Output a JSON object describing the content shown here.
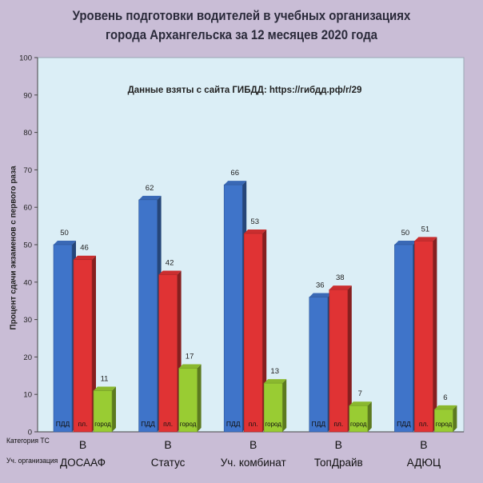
{
  "title_lines": [
    "Уровень  подготовки водителей в учебных организациях",
    "города Архангельска за 12 месяцев 2020 года"
  ],
  "colors": {
    "page_bg": "#c9bdd6",
    "plot_bg": "#dbeef6",
    "pdd": "#3f74c9",
    "pl": "#e03334",
    "gorod": "#99cc33"
  },
  "row_labels": {
    "category": "Категория ТС",
    "org": "Уч. организация"
  },
  "chart_data": {
    "type": "bar",
    "title": "",
    "annotation": "Данные взяты с сайта ГИБДД: https://гибдд.рф/r/29",
    "ylabel": "Процент сдачи экзаменов с первого раза",
    "xlabel": "",
    "ylim": [
      0,
      100
    ],
    "yticks": [
      0,
      10,
      20,
      30,
      40,
      50,
      60,
      70,
      80,
      90,
      100
    ],
    "grid": false,
    "legend": "none",
    "categories": [
      "ДОСААФ",
      "Статус",
      "Уч. комбинат",
      "ТопДрайв",
      "АДЮЦ"
    ],
    "vehicle_category": [
      "В",
      "В",
      "В",
      "В",
      "В"
    ],
    "series": [
      {
        "bar_label": "ПДД",
        "values": [
          50,
          62,
          66,
          36,
          50
        ],
        "color": "#3f74c9"
      },
      {
        "bar_label": "пл.",
        "values": [
          46,
          42,
          53,
          38,
          51
        ],
        "color": "#e03334"
      },
      {
        "bar_label": "город",
        "values": [
          11,
          17,
          13,
          7,
          6
        ],
        "color": "#99cc33"
      }
    ]
  }
}
